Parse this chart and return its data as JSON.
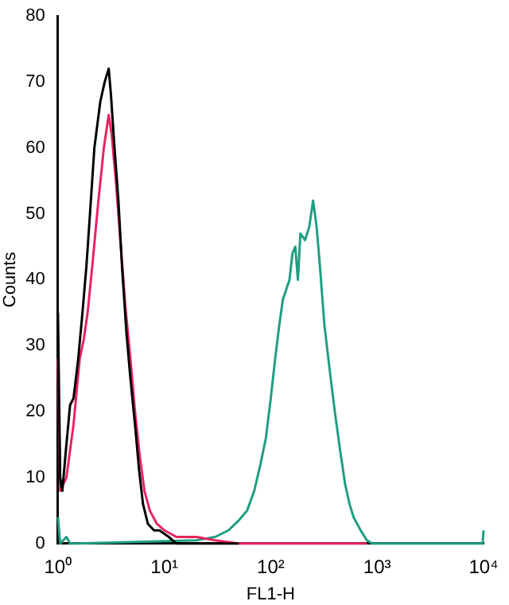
{
  "chart_data": {
    "type": "line",
    "xlabel": "FL1-H",
    "ylabel": "Counts",
    "log": "x",
    "grid": false,
    "legend": false,
    "xlim": [
      1,
      10000
    ],
    "ylim": [
      0,
      80
    ],
    "xticks": [
      {
        "value": 1,
        "label": "10⁰"
      },
      {
        "value": 10,
        "label": "10¹"
      },
      {
        "value": 100,
        "label": "10²"
      },
      {
        "value": 1000,
        "label": "10³"
      },
      {
        "value": 10000,
        "label": "10⁴"
      }
    ],
    "yticks": [
      0,
      10,
      20,
      30,
      40,
      50,
      60,
      70,
      80
    ],
    "series": [
      {
        "color": "#000000",
        "x": [
          1,
          1.05,
          1.1,
          1.2,
          1.3,
          1.4,
          1.55,
          1.7,
          1.85,
          2,
          2.2,
          2.5,
          2.75,
          3,
          3.15,
          3.4,
          3.7,
          4,
          4.4,
          4.8,
          5.3,
          5.8,
          6.3,
          7,
          8,
          9,
          11,
          13,
          20,
          50
        ],
        "values": [
          35,
          10,
          8,
          15,
          21,
          22,
          28,
          35,
          42,
          50,
          60,
          67,
          70,
          72,
          68,
          60,
          52,
          42,
          32,
          25,
          18,
          11,
          6,
          3,
          2,
          2,
          1,
          0,
          0,
          0
        ]
      },
      {
        "color": "#e8245e",
        "x": [
          1,
          1.05,
          1.2,
          1.4,
          1.6,
          1.75,
          1.9,
          2.1,
          2.4,
          2.7,
          3,
          3.2,
          3.5,
          3.9,
          4.3,
          4.8,
          5.3,
          5.9,
          6.5,
          7.3,
          8.5,
          10,
          13,
          20,
          30,
          50,
          100,
          800
        ],
        "values": [
          28,
          8,
          10,
          18,
          28,
          31,
          35,
          42,
          52,
          60,
          65,
          62,
          55,
          45,
          36,
          28,
          20,
          13,
          8,
          5,
          3,
          2,
          1,
          1,
          0.5,
          0,
          0,
          0
        ]
      },
      {
        "color": "#1f9e82",
        "x": [
          1,
          1.05,
          1.2,
          1.3,
          1.5,
          20,
          30,
          40,
          50,
          60,
          70,
          80,
          90,
          100,
          110,
          120,
          130,
          150,
          160,
          170,
          180,
          190,
          210,
          230,
          250,
          270,
          290,
          320,
          360,
          400,
          450,
          500,
          550,
          600,
          700,
          800,
          900,
          9800,
          10000
        ],
        "values": [
          4,
          0,
          1,
          0,
          0,
          0.5,
          1,
          2,
          3.5,
          5,
          8,
          12,
          16,
          22,
          28,
          33,
          37,
          40,
          44,
          45,
          40,
          47,
          46,
          48,
          52,
          48,
          42,
          33,
          26,
          20,
          14,
          9,
          6,
          4,
          2,
          0.5,
          0,
          0,
          2
        ]
      }
    ]
  }
}
